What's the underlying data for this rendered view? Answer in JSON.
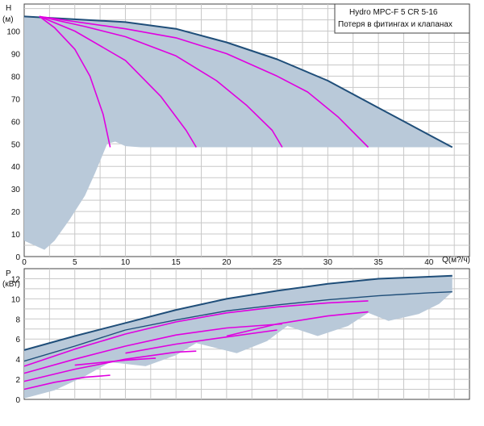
{
  "chart_data": [
    {
      "type": "line",
      "title": "",
      "legend": [
        "Hydro MPC-F 5 CR 5-16",
        "Потеря в фитингах и клапанах"
      ],
      "ylabel_top": "H",
      "ylabel_unit": "(м)",
      "xlabel": "Q(м?/ч)",
      "xlim": [
        0,
        44
      ],
      "ylim": [
        0,
        112
      ],
      "xticks": [
        0,
        5,
        10,
        15,
        20,
        25,
        30,
        35,
        40
      ],
      "yticks": [
        0,
        10,
        20,
        30,
        40,
        50,
        60,
        70,
        80,
        90,
        100
      ],
      "grid": true,
      "colors": {
        "max_curve": "#1f4e79",
        "pump_curves": "#e000e0",
        "band": "#b9c9d9"
      },
      "band_upper": [
        [
          0,
          106.5
        ],
        [
          10,
          104
        ],
        [
          15,
          101
        ],
        [
          20,
          95
        ],
        [
          25,
          87.5
        ],
        [
          30,
          78
        ],
        [
          35,
          66
        ],
        [
          40,
          54
        ],
        [
          42.3,
          48.5
        ]
      ],
      "band_lower": [
        [
          42.3,
          48.5
        ],
        [
          40,
          48.5
        ],
        [
          30,
          48.5
        ],
        [
          20,
          48.5
        ],
        [
          11.5,
          48.5
        ],
        [
          10,
          49
        ],
        [
          9,
          51
        ],
        [
          8.2,
          50
        ],
        [
          7,
          37
        ],
        [
          6,
          27
        ],
        [
          4.5,
          16.5
        ],
        [
          3,
          7
        ],
        [
          2,
          3
        ],
        [
          0,
          7
        ]
      ],
      "series": [
        {
          "name": "",
          "values": [
            [
              0,
              106.5
            ],
            [
              10,
              104
            ],
            [
              15,
              101
            ],
            [
              20,
              95
            ],
            [
              25,
              87.5
            ],
            [
              30,
              78
            ],
            [
              35,
              66
            ],
            [
              40,
              54
            ],
            [
              42.3,
              48.5
            ]
          ]
        },
        {
          "name": "",
          "values": [
            [
              1.5,
              106.5
            ],
            [
              3,
              101.5
            ],
            [
              5,
              92
            ],
            [
              6.5,
              80
            ],
            [
              7.8,
              63
            ],
            [
              8.5,
              48.5
            ]
          ]
        },
        {
          "name": "",
          "values": [
            [
              1.5,
              106.5
            ],
            [
              5,
              100
            ],
            [
              10,
              87
            ],
            [
              13.5,
              71
            ],
            [
              16,
              56
            ],
            [
              17,
              48.5
            ]
          ]
        },
        {
          "name": "",
          "values": [
            [
              1.5,
              106.5
            ],
            [
              6,
              102
            ],
            [
              10,
              97.5
            ],
            [
              15,
              89
            ],
            [
              19,
              78
            ],
            [
              22,
              67
            ],
            [
              24.5,
              56
            ],
            [
              25.5,
              48.5
            ]
          ]
        },
        {
          "name": "",
          "values": [
            [
              1.5,
              106.5
            ],
            [
              10,
              101
            ],
            [
              15,
              97
            ],
            [
              20,
              90
            ],
            [
              25,
              80
            ],
            [
              28,
              73
            ],
            [
              31,
              62
            ],
            [
              34,
              48.5
            ]
          ]
        }
      ]
    },
    {
      "type": "line",
      "title": "",
      "ylabel_top": "P",
      "ylabel_unit": "(кВт)",
      "xlim": [
        0,
        44
      ],
      "ylim": [
        0,
        13
      ],
      "yticks": [
        0,
        2,
        4,
        6,
        8,
        10,
        12
      ],
      "grid": true,
      "colors": {
        "max_curve": "#1f4e79",
        "pump_curves": "#e000e0",
        "band": "#b9c9d9"
      },
      "band_upper": [
        [
          0,
          4.9
        ],
        [
          5,
          6.3
        ],
        [
          10,
          7.6
        ],
        [
          15,
          8.9
        ],
        [
          20,
          10
        ],
        [
          25,
          10.8
        ],
        [
          30,
          11.5
        ],
        [
          35,
          12
        ],
        [
          40,
          12.2
        ],
        [
          42.3,
          12.3
        ]
      ],
      "band_lower": [
        [
          42.3,
          10.7
        ],
        [
          41,
          9.5
        ],
        [
          39,
          8.5
        ],
        [
          36,
          7.8
        ],
        [
          34,
          8.6
        ],
        [
          32,
          7.3
        ],
        [
          29,
          6.3
        ],
        [
          26,
          7.3
        ],
        [
          24,
          5.8
        ],
        [
          21,
          4.6
        ],
        [
          17,
          5.6
        ],
        [
          15,
          4.4
        ],
        [
          12,
          3.3
        ],
        [
          8.5,
          3.7
        ],
        [
          6,
          2.3
        ],
        [
          3,
          0.9
        ],
        [
          0,
          0.1
        ]
      ],
      "series": [
        {
          "name": "",
          "values": [
            [
              0,
              4.9
            ],
            [
              5,
              6.3
            ],
            [
              10,
              7.6
            ],
            [
              15,
              8.9
            ],
            [
              20,
              10
            ],
            [
              25,
              10.8
            ],
            [
              30,
              11.5
            ],
            [
              35,
              12
            ],
            [
              40,
              12.2
            ],
            [
              42.3,
              12.3
            ]
          ]
        },
        {
          "name": "",
          "values": [
            [
              0,
              3.8
            ],
            [
              5,
              5.3
            ],
            [
              10,
              6.9
            ],
            [
              15,
              7.9
            ],
            [
              20,
              8.8
            ],
            [
              25,
              9.4
            ],
            [
              30,
              9.9
            ],
            [
              35,
              10.3
            ],
            [
              40,
              10.6
            ],
            [
              42.3,
              10.7
            ]
          ]
        },
        {
          "name": "",
          "values": [
            [
              0,
              3.3
            ],
            [
              5,
              5
            ],
            [
              10,
              6.5
            ],
            [
              15,
              7.7
            ],
            [
              20,
              8.6
            ],
            [
              25,
              9.2
            ],
            [
              30,
              9.6
            ],
            [
              34,
              9.8
            ]
          ]
        },
        {
          "name": "",
          "values": [
            [
              0,
              2.6
            ],
            [
              5,
              4
            ],
            [
              10,
              5.3
            ],
            [
              15,
              6.4
            ],
            [
              20,
              7.1
            ],
            [
              25.5,
              7.5
            ]
          ]
        },
        {
          "name": "",
          "values": [
            [
              0,
              1.8
            ],
            [
              5,
              3
            ],
            [
              10,
              4
            ],
            [
              15,
              4.7
            ],
            [
              17,
              4.8
            ]
          ]
        },
        {
          "name": "",
          "values": [
            [
              0,
              1
            ],
            [
              3,
              1.7
            ],
            [
              6,
              2.2
            ],
            [
              8.5,
              2.4
            ]
          ]
        },
        {
          "name": "",
          "values": [
            [
              20,
              6.3
            ],
            [
              25,
              7.5
            ],
            [
              30,
              8.3
            ],
            [
              34,
              8.7
            ]
          ]
        },
        {
          "name": "",
          "values": [
            [
              10,
              4.6
            ],
            [
              15,
              5.5
            ],
            [
              20,
              6.2
            ],
            [
              25,
              6.9
            ]
          ]
        },
        {
          "name": "",
          "values": [
            [
              5,
              3.4
            ],
            [
              10,
              3.9
            ],
            [
              13,
              4.1
            ]
          ]
        }
      ]
    }
  ]
}
